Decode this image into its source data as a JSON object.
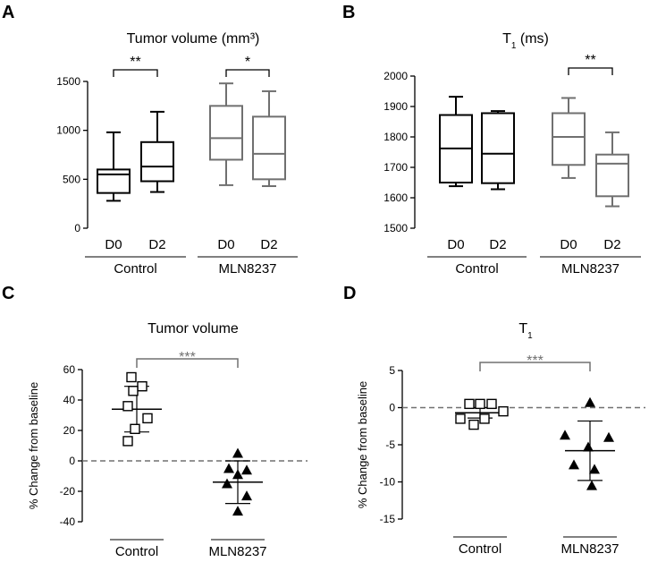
{
  "colors": {
    "control": "#000000",
    "treated": "#707070",
    "zero_line": "#707070"
  },
  "chart_data": [
    {
      "panel": "A",
      "type": "box",
      "title": "Tumor volume (mm³)",
      "ylim": [
        0,
        1500
      ],
      "yticks": [
        0,
        500,
        1000,
        1500
      ],
      "groups": [
        "Control",
        "MLN8237"
      ],
      "timepoints": [
        "D0",
        "D2"
      ],
      "boxes": [
        {
          "group": "Control",
          "time": "D0",
          "min": 280,
          "q1": 360,
          "median": 550,
          "q3": 600,
          "max": 980
        },
        {
          "group": "Control",
          "time": "D2",
          "min": 370,
          "q1": 480,
          "median": 630,
          "q3": 880,
          "max": 1190
        },
        {
          "group": "MLN8237",
          "time": "D0",
          "min": 440,
          "q1": 700,
          "median": 920,
          "q3": 1250,
          "max": 1480
        },
        {
          "group": "MLN8237",
          "time": "D2",
          "min": 430,
          "q1": 500,
          "median": 760,
          "q3": 1140,
          "max": 1400
        }
      ],
      "significance": [
        {
          "group": "Control",
          "label": "**"
        },
        {
          "group": "MLN8237",
          "label": "*"
        }
      ]
    },
    {
      "panel": "B",
      "type": "box",
      "title": "T",
      "title_sub": "1",
      "title_suffix": " (ms)",
      "ylim": [
        1500,
        2000
      ],
      "yticks": [
        1500,
        1600,
        1700,
        1800,
        1900,
        2000
      ],
      "groups": [
        "Control",
        "MLN8237"
      ],
      "timepoints": [
        "D0",
        "D2"
      ],
      "boxes": [
        {
          "group": "Control",
          "time": "D0",
          "min": 1638,
          "q1": 1650,
          "median": 1762,
          "q3": 1872,
          "max": 1932
        },
        {
          "group": "Control",
          "time": "D2",
          "min": 1628,
          "q1": 1648,
          "median": 1745,
          "q3": 1878,
          "max": 1885
        },
        {
          "group": "MLN8237",
          "time": "D0",
          "min": 1665,
          "q1": 1708,
          "median": 1800,
          "q3": 1878,
          "max": 1928
        },
        {
          "group": "MLN8237",
          "time": "D2",
          "min": 1572,
          "q1": 1605,
          "median": 1712,
          "q3": 1742,
          "max": 1815
        }
      ],
      "significance": [
        {
          "group": "MLN8237",
          "label": "**"
        }
      ]
    },
    {
      "panel": "C",
      "type": "scatter",
      "title": "Tumor volume",
      "ylabel": "% Change from baseline",
      "ylim": [
        -40,
        60
      ],
      "yticks": [
        -40,
        -20,
        0,
        20,
        40,
        60
      ],
      "groups": [
        "Control",
        "MLN8237"
      ],
      "points": [
        [
          55,
          49,
          46,
          36,
          28,
          21,
          13
        ],
        [
          5,
          -5,
          -6,
          -9,
          -15,
          -23,
          -33
        ]
      ],
      "means": [
        34,
        -14
      ],
      "sd_low": [
        19,
        -28
      ],
      "sd_high": [
        49,
        0
      ],
      "significance": "***"
    },
    {
      "panel": "D",
      "type": "scatter",
      "title": "T",
      "title_sub": "1",
      "ylabel": "% Change from baseline",
      "ylim": [
        -15,
        5
      ],
      "yticks": [
        -15,
        -10,
        -5,
        0,
        5
      ],
      "groups": [
        "Control",
        "MLN8237"
      ],
      "points": [
        [
          0.5,
          0.5,
          0.5,
          -0.5,
          -1.5,
          -1.5,
          -2.3
        ],
        [
          0.7,
          -3.7,
          -4.0,
          -5.3,
          -7.7,
          -8.3,
          -10.5
        ]
      ],
      "means": [
        -0.7,
        -5.8
      ],
      "sd_low": [
        -1.4,
        -9.8
      ],
      "sd_high": [
        0,
        -1.8
      ],
      "significance": "***"
    }
  ]
}
